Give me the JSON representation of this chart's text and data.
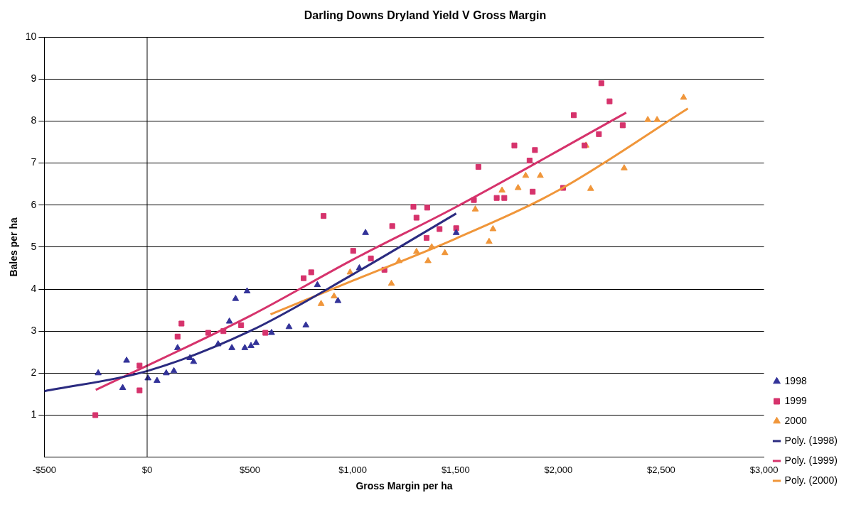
{
  "chart_data": {
    "type": "scatter",
    "title": "Darling Downs Dryland Yield V Gross Margin",
    "xlabel": "Gross Margin per ha",
    "ylabel": "Bales per ha",
    "xlim": [
      -500,
      3000
    ],
    "xticks": [
      {
        "value": -500,
        "label": "-$500"
      },
      {
        "value": 0,
        "label": "$0"
      },
      {
        "value": 500,
        "label": "$500"
      },
      {
        "value": 1000,
        "label": "$1,000"
      },
      {
        "value": 1500,
        "label": "$1,500"
      },
      {
        "value": 2000,
        "label": "$2,000"
      },
      {
        "value": 2500,
        "label": "$2,500"
      },
      {
        "value": 3000,
        "label": "$3,000"
      }
    ],
    "ylim": [
      0,
      10
    ],
    "yticks": [
      1,
      2,
      3,
      4,
      5,
      6,
      7,
      8,
      9,
      10
    ],
    "grid": "y",
    "legend": "right",
    "ref_lines": [
      {
        "axis": "x",
        "value": 0,
        "color": "#000000"
      }
    ],
    "series": [
      {
        "name": "1998",
        "marker": "triangle",
        "color": "#333399",
        "x": [
          -238,
          -100,
          -119,
          4,
          48,
          93,
          130,
          148,
          208,
          226,
          345,
          412,
          430,
          486,
          530,
          505,
          475,
          400,
          605,
          690,
          772,
          928,
          1032,
          1062,
          1503,
          828
        ],
        "values": [
          2.0,
          2.3,
          1.65,
          1.88,
          1.82,
          2.0,
          2.05,
          2.6,
          2.36,
          2.27,
          2.69,
          2.6,
          3.77,
          3.95,
          2.72,
          2.65,
          2.6,
          3.23,
          2.96,
          3.1,
          3.14,
          3.72,
          4.5,
          5.34,
          5.34,
          4.1
        ]
      },
      {
        "name": "1999",
        "marker": "square",
        "color": "#d6336c",
        "x": [
          -252,
          -37,
          -37,
          167,
          148,
          297,
          371,
          457,
          575,
          858,
          1192,
          1295,
          1362,
          1310,
          1002,
          1088,
          1154,
          798,
          761,
          1422,
          1359,
          1786,
          1886,
          1860,
          1611,
          1700,
          1737,
          1875,
          2023,
          1589,
          1503,
          2209,
          2249,
          2075,
          2313,
          2197,
          2127
        ],
        "values": [
          1.0,
          1.59,
          2.18,
          3.18,
          2.87,
          2.96,
          3.0,
          3.14,
          2.96,
          5.74,
          5.5,
          5.96,
          5.94,
          5.7,
          4.91,
          4.73,
          4.46,
          4.4,
          4.26,
          5.43,
          5.22,
          7.42,
          7.31,
          7.06,
          6.91,
          6.17,
          6.17,
          6.32,
          6.41,
          6.12,
          5.45,
          8.9,
          8.47,
          8.14,
          7.9,
          7.69,
          7.42
        ]
      },
      {
        "name": "2000",
        "marker": "triangle",
        "color": "#f0963a",
        "x": [
          846,
          909,
          1188,
          987,
          1225,
          1366,
          1448,
          1310,
          1384,
          1596,
          1663,
          1841,
          1912,
          1726,
          1804,
          1682,
          2134,
          2320,
          2157,
          2609,
          2435,
          2480
        ],
        "values": [
          3.65,
          3.83,
          4.13,
          4.4,
          4.67,
          4.67,
          4.86,
          4.89,
          5.0,
          5.9,
          5.13,
          6.7,
          6.7,
          6.35,
          6.41,
          5.43,
          7.42,
          6.88,
          6.39,
          8.56,
          8.03,
          8.03
        ]
      },
      {
        "name": "Poly. (1998)",
        "type": "line",
        "marker": "none",
        "color": "#2b2b80",
        "x": [
          -500,
          0,
          500,
          1000,
          1503
        ],
        "values": [
          1.57,
          2.05,
          3.0,
          4.35,
          5.8
        ]
      },
      {
        "name": "Poly. (1999)",
        "type": "line",
        "marker": "none",
        "color": "#d6336c",
        "x": [
          -250,
          500,
          1000,
          1500,
          2330
        ],
        "values": [
          1.6,
          3.36,
          4.7,
          5.95,
          8.2
        ]
      },
      {
        "name": "Poly. (2000)",
        "type": "line",
        "marker": "none",
        "color": "#f0963a",
        "x": [
          600,
          1000,
          1500,
          2000,
          2630
        ],
        "values": [
          3.4,
          4.2,
          5.2,
          6.35,
          8.3
        ]
      }
    ]
  }
}
